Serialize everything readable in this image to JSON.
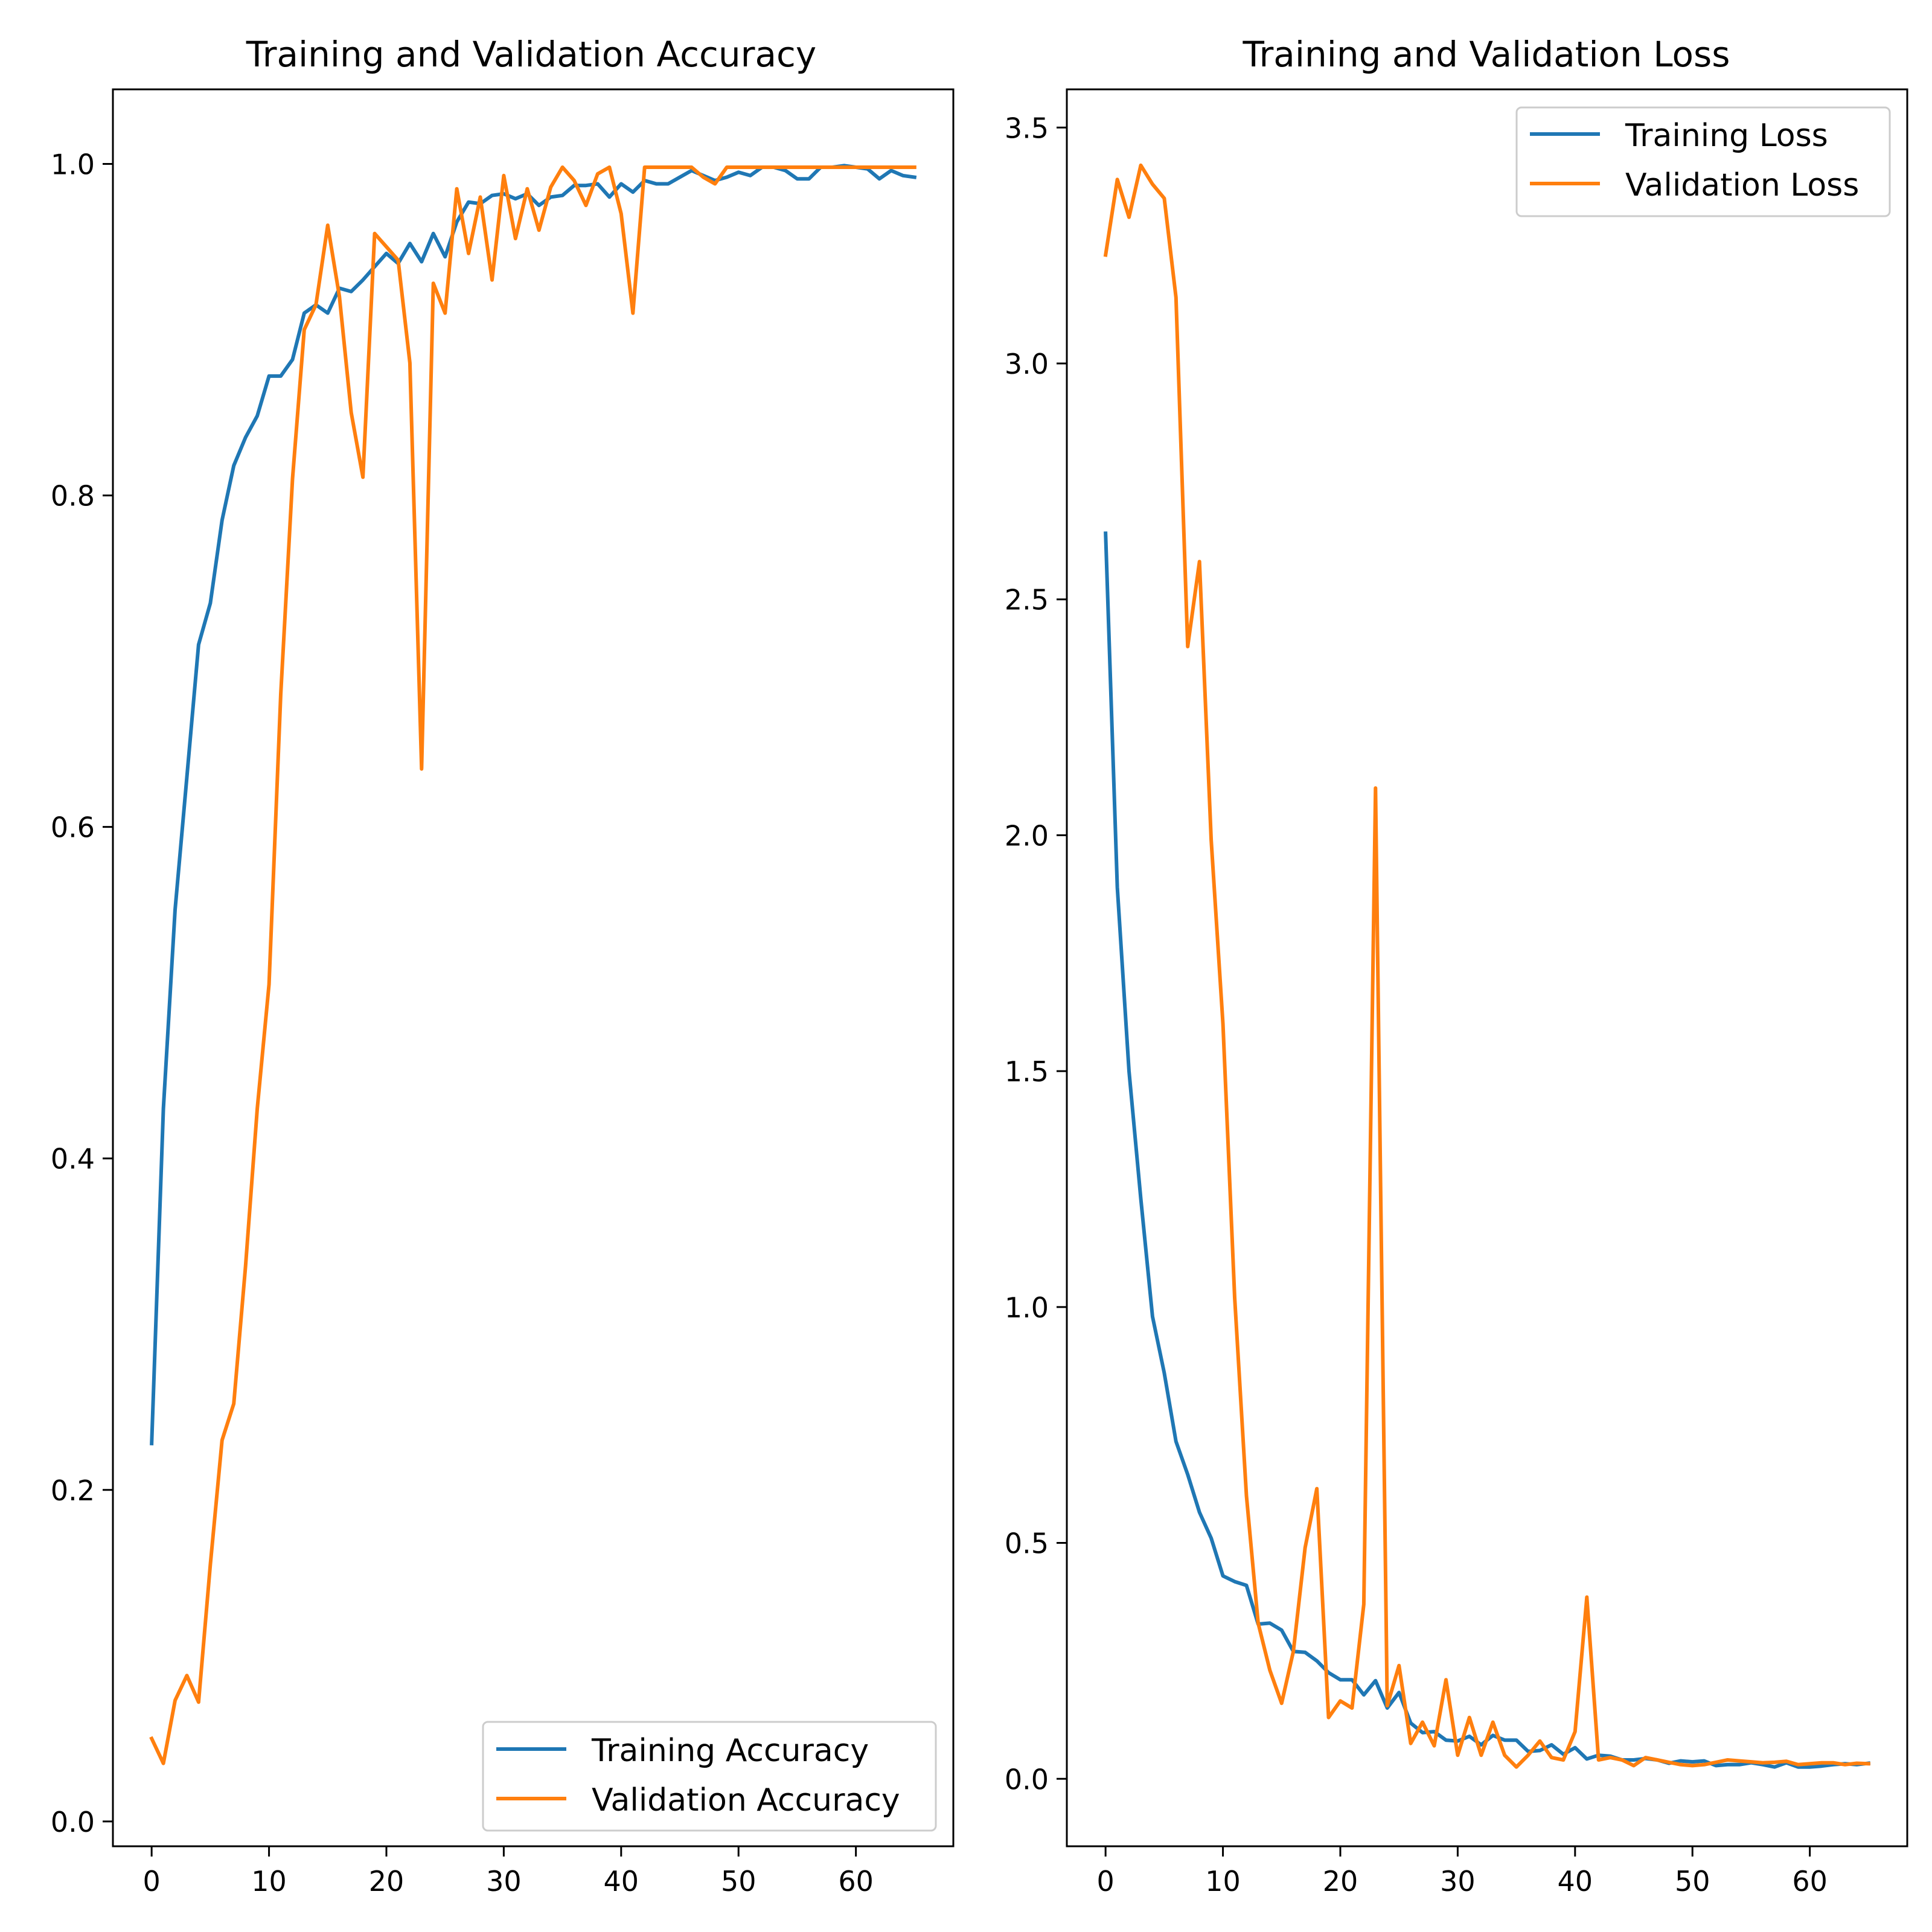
{
  "colors": {
    "series_0": "#1f77b4",
    "series_1": "#ff7f0e",
    "axes": "#000000",
    "legend_border": "#cccccc",
    "background": "#ffffff"
  },
  "chart_data": [
    {
      "type": "line",
      "title": "Training and Validation Accuracy",
      "xlabel": "",
      "ylabel": "",
      "xlim": [
        -3.3,
        68.3
      ],
      "ylim": [
        -0.015,
        1.045
      ],
      "xticks": [
        0,
        10,
        20,
        30,
        40,
        50,
        60
      ],
      "xtick_labels": [
        "0",
        "10",
        "20",
        "30",
        "40",
        "50",
        "60"
      ],
      "yticks": [
        0.0,
        0.2,
        0.4,
        0.6,
        0.8,
        1.0
      ],
      "ytick_labels": [
        "0.0",
        "0.2",
        "0.4",
        "0.6",
        "0.8",
        "1.0"
      ],
      "grid": false,
      "legend_position": "lower-right",
      "x": [
        0,
        1,
        2,
        3,
        4,
        5,
        6,
        7,
        8,
        9,
        10,
        11,
        12,
        13,
        14,
        15,
        16,
        17,
        18,
        19,
        20,
        21,
        22,
        23,
        24,
        25,
        26,
        27,
        28,
        29,
        30,
        31,
        32,
        33,
        34,
        35,
        36,
        37,
        38,
        39,
        40,
        41,
        42,
        43,
        44,
        45,
        46,
        47,
        48,
        49,
        50,
        51,
        52,
        53,
        54,
        55,
        56,
        57,
        58,
        59,
        60,
        61,
        62,
        63,
        64,
        65
      ],
      "series": [
        {
          "name": "Training Accuracy",
          "color": "#1f77b4",
          "values": [
            0.228,
            0.43,
            0.55,
            0.63,
            0.71,
            0.735,
            0.785,
            0.818,
            0.835,
            0.848,
            0.872,
            0.872,
            0.882,
            0.91,
            0.915,
            0.91,
            0.925,
            0.923,
            0.93,
            0.938,
            0.946,
            0.94,
            0.952,
            0.941,
            0.958,
            0.944,
            0.965,
            0.977,
            0.976,
            0.981,
            0.982,
            0.979,
            0.982,
            0.975,
            0.98,
            0.981,
            0.987,
            0.987,
            0.988,
            0.98,
            0.988,
            0.983,
            0.99,
            0.988,
            0.988,
            0.992,
            0.996,
            0.993,
            0.99,
            0.992,
            0.995,
            0.993,
            0.998,
            0.998,
            0.996,
            0.991,
            0.991,
            0.998,
            0.998,
            0.999,
            0.998,
            0.997,
            0.991,
            0.996,
            0.993,
            0.992
          ]
        },
        {
          "name": "Validation Accuracy",
          "color": "#ff7f0e",
          "values": [
            0.05,
            0.035,
            0.073,
            0.088,
            0.072,
            0.155,
            0.23,
            0.252,
            0.335,
            0.43,
            0.505,
            0.68,
            0.81,
            0.9,
            0.915,
            0.963,
            0.92,
            0.85,
            0.811,
            0.958,
            0.95,
            0.942,
            0.88,
            0.635,
            0.928,
            0.91,
            0.985,
            0.946,
            0.98,
            0.93,
            0.993,
            0.955,
            0.985,
            0.96,
            0.986,
            0.998,
            0.99,
            0.975,
            0.994,
            0.998,
            0.97,
            0.91,
            0.998,
            0.998,
            0.998,
            0.998,
            0.998,
            0.992,
            0.988,
            0.998,
            0.998,
            0.998,
            0.998,
            0.998,
            0.998,
            0.998,
            0.998,
            0.998,
            0.998,
            0.998,
            0.998,
            0.998,
            0.998,
            0.998,
            0.998,
            0.998
          ]
        }
      ]
    },
    {
      "type": "line",
      "title": "Training and Validation Loss",
      "xlabel": "",
      "ylabel": "",
      "xlim": [
        -3.3,
        68.3
      ],
      "ylim": [
        -0.143,
        3.581
      ],
      "xticks": [
        0,
        10,
        20,
        30,
        40,
        50,
        60
      ],
      "xtick_labels": [
        "0",
        "10",
        "20",
        "30",
        "40",
        "50",
        "60"
      ],
      "yticks": [
        0.0,
        0.5,
        1.0,
        1.5,
        2.0,
        2.5,
        3.0,
        3.5
      ],
      "ytick_labels": [
        "0.0",
        "0.5",
        "1.0",
        "1.5",
        "2.0",
        "2.5",
        "3.0",
        "3.5"
      ],
      "grid": false,
      "legend_position": "upper-right",
      "x": [
        0,
        1,
        2,
        3,
        4,
        5,
        6,
        7,
        8,
        9,
        10,
        11,
        12,
        13,
        14,
        15,
        16,
        17,
        18,
        19,
        20,
        21,
        22,
        23,
        24,
        25,
        26,
        27,
        28,
        29,
        30,
        31,
        32,
        33,
        34,
        35,
        36,
        37,
        38,
        39,
        40,
        41,
        42,
        43,
        44,
        45,
        46,
        47,
        48,
        49,
        50,
        51,
        52,
        53,
        54,
        55,
        56,
        57,
        58,
        59,
        60,
        61,
        62,
        63,
        64,
        65
      ],
      "series": [
        {
          "name": "Training Loss",
          "color": "#1f77b4",
          "values": [
            2.64,
            1.89,
            1.5,
            1.23,
            0.98,
            0.86,
            0.715,
            0.645,
            0.565,
            0.51,
            0.43,
            0.418,
            0.41,
            0.328,
            0.33,
            0.315,
            0.27,
            0.268,
            0.25,
            0.225,
            0.21,
            0.21,
            0.178,
            0.208,
            0.15,
            0.183,
            0.118,
            0.098,
            0.1,
            0.082,
            0.08,
            0.09,
            0.072,
            0.092,
            0.082,
            0.082,
            0.058,
            0.06,
            0.072,
            0.052,
            0.066,
            0.042,
            0.05,
            0.048,
            0.04,
            0.04,
            0.043,
            0.04,
            0.033,
            0.038,
            0.036,
            0.038,
            0.028,
            0.03,
            0.03,
            0.034,
            0.03,
            0.025,
            0.034,
            0.025,
            0.025,
            0.027,
            0.03,
            0.032,
            0.03,
            0.033
          ]
        },
        {
          "name": "Validation Loss",
          "color": "#ff7f0e",
          "values": [
            3.23,
            3.39,
            3.31,
            3.42,
            3.38,
            3.35,
            3.14,
            2.4,
            2.58,
            1.99,
            1.6,
            1.02,
            0.6,
            0.33,
            0.23,
            0.16,
            0.27,
            0.49,
            0.615,
            0.13,
            0.165,
            0.15,
            0.37,
            2.1,
            0.155,
            0.24,
            0.075,
            0.12,
            0.07,
            0.21,
            0.05,
            0.13,
            0.05,
            0.12,
            0.05,
            0.025,
            0.05,
            0.08,
            0.045,
            0.04,
            0.1,
            0.385,
            0.04,
            0.045,
            0.04,
            0.028,
            0.045,
            0.04,
            0.035,
            0.03,
            0.028,
            0.03,
            0.035,
            0.04,
            0.038,
            0.036,
            0.034,
            0.035,
            0.037,
            0.03,
            0.032,
            0.034,
            0.034,
            0.03,
            0.033,
            0.032
          ]
        }
      ]
    }
  ]
}
